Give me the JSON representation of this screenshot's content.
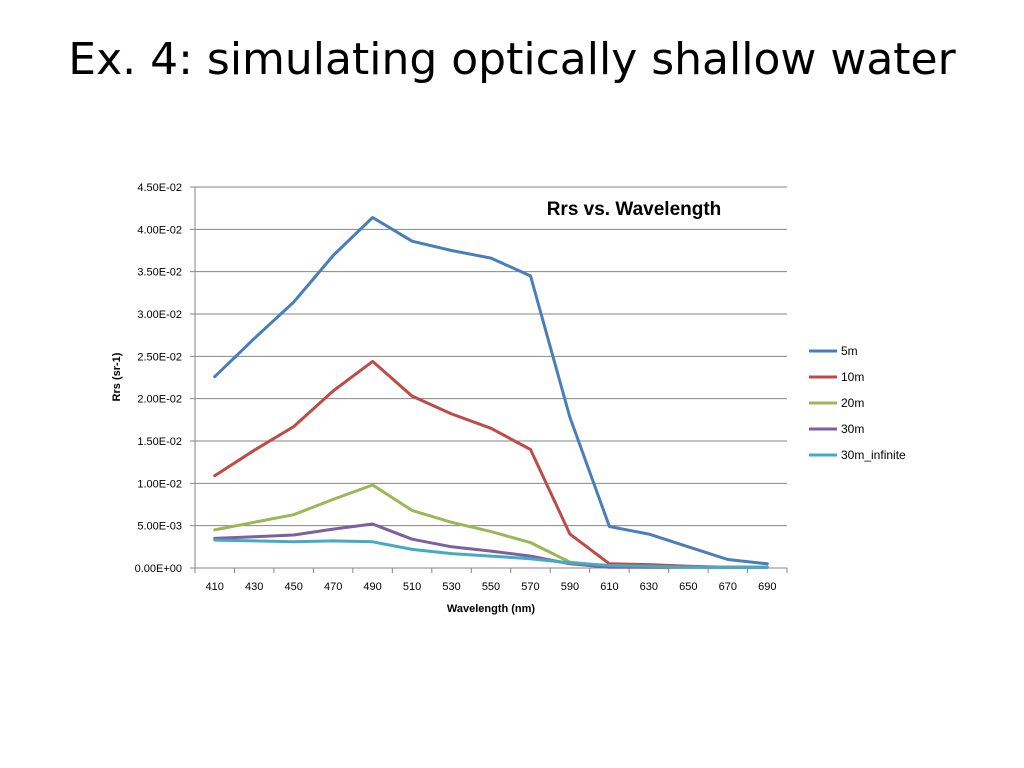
{
  "slide": {
    "title": "Ex. 4: simulating optically shallow water"
  },
  "chart_data": {
    "type": "line",
    "title": "Rrs vs. Wavelength",
    "xlabel": "Wavelength (nm)",
    "ylabel": "Rrs (sr-1)",
    "categories": [
      "410",
      "430",
      "450",
      "470",
      "490",
      "510",
      "530",
      "550",
      "570",
      "590",
      "610",
      "630",
      "650",
      "670",
      "690"
    ],
    "ylim": [
      0,
      0.045
    ],
    "yticks": [
      0,
      0.005,
      0.01,
      0.015,
      0.02,
      0.025,
      0.03,
      0.035,
      0.04,
      0.045
    ],
    "ytick_labels": [
      "0.00E+00",
      "5.00E-03",
      "1.00E-02",
      "1.50E-02",
      "2.00E-02",
      "2.50E-02",
      "3.00E-02",
      "3.50E-02",
      "4.00E-02",
      "4.50E-02"
    ],
    "grid": "horizontal",
    "legend": "right",
    "series": [
      {
        "name": "5m",
        "color": "#4a7ebb",
        "values": [
          0.0226,
          0.0271,
          0.0314,
          0.0369,
          0.0414,
          0.0386,
          0.0375,
          0.0366,
          0.0345,
          0.0178,
          0.0049,
          0.004,
          0.0025,
          0.001,
          0.0005
        ]
      },
      {
        "name": "10m",
        "color": "#be4b48",
        "values": [
          0.0109,
          0.0139,
          0.0167,
          0.0209,
          0.0244,
          0.0203,
          0.0182,
          0.0165,
          0.014,
          0.004,
          0.0005,
          0.0004,
          0.0002,
          0.0001,
          0.0001
        ]
      },
      {
        "name": "20m",
        "color": "#98b954",
        "values": [
          0.0045,
          0.0054,
          0.0063,
          0.0081,
          0.0098,
          0.0068,
          0.0054,
          0.0043,
          0.003,
          0.0007,
          0.0002,
          0.0001,
          0.0001,
          0.0001,
          0.0001
        ]
      },
      {
        "name": "30m",
        "color": "#7d60a0",
        "values": [
          0.0035,
          0.0037,
          0.0039,
          0.0046,
          0.0052,
          0.0034,
          0.0025,
          0.002,
          0.0014,
          0.0005,
          0.0001,
          0.0001,
          0.0001,
          0.0001,
          0.0001
        ]
      },
      {
        "name": "30m_infinite",
        "color": "#46aac5",
        "values": [
          0.0033,
          0.0032,
          0.0031,
          0.0032,
          0.0031,
          0.0022,
          0.0017,
          0.0014,
          0.0011,
          0.0006,
          0.0003,
          0.0002,
          0.0001,
          0.0001,
          0.0001
        ]
      }
    ]
  }
}
